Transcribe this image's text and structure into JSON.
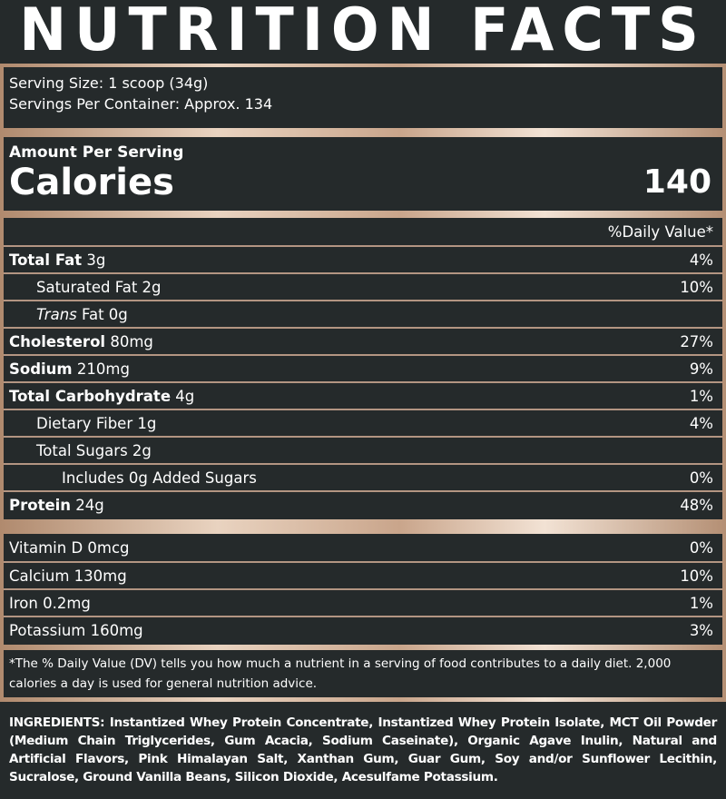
{
  "title": "NUTRITION FACTS",
  "serving_size": "Serving Size: 1 scoop (34g)",
  "servings_per_container": "Servings Per Container: Approx. 134",
  "amount_per_serving": "Amount Per Serving",
  "calories_label": "Calories",
  "calories_value": "140",
  "daily_value_header": "%Daily Value*",
  "nutrients": [
    {
      "bold": "Total Fat",
      "amount": " 3g",
      "dv": "4%"
    },
    {
      "label": "Saturated Fat 2g",
      "dv": "10%"
    },
    {
      "italic": "Trans",
      "amount": " Fat 0g",
      "dv": ""
    },
    {
      "bold": "Cholesterol",
      "amount": " 80mg",
      "dv": "27%"
    },
    {
      "bold": "Sodium",
      "amount": " 210mg",
      "dv": "9%"
    },
    {
      "bold": "Total Carbohydrate",
      "amount": " 4g",
      "dv": "1%"
    },
    {
      "label": "Dietary Fiber 1g",
      "dv": "4%"
    },
    {
      "label": "Total Sugars 2g",
      "dv": ""
    },
    {
      "label": "Includes 0g Added Sugars",
      "dv": "0%"
    },
    {
      "bold": "Protein",
      "amount": " 24g",
      "dv": "48%"
    }
  ],
  "vitamins": [
    {
      "label": "Vitamin D 0mcg",
      "dv": "0%"
    },
    {
      "label": "Calcium 130mg",
      "dv": "10%"
    },
    {
      "label": "Iron 0.2mg",
      "dv": "1%"
    },
    {
      "label": "Potassium 160mg",
      "dv": "3%"
    }
  ],
  "footnote": "*The % Daily Value (DV) tells you how much a nutrient in a serving of food contributes to a daily diet. 2,000 calories a day is used for general nutrition advice.",
  "ingredients": "INGREDIENTS: Instantized Whey Protein Concentrate, Instantized Whey Protein Isolate, MCT Oil Powder (Medium Chain Triglycerides, Gum Acacia, Sodium Caseinate), Organic Agave Inulin, Natural and Artificial Flavors, Pink Himalayan Salt, Xanthan Gum, Guar Gum, Soy and/or Sunflower Lecithin, Sucralose, Ground Vanilla Beans, Silicon Dioxide, Acesulfame Potassium.",
  "colors": {
    "background": "#252a2b",
    "accent_gold": "#d9bba4"
  }
}
